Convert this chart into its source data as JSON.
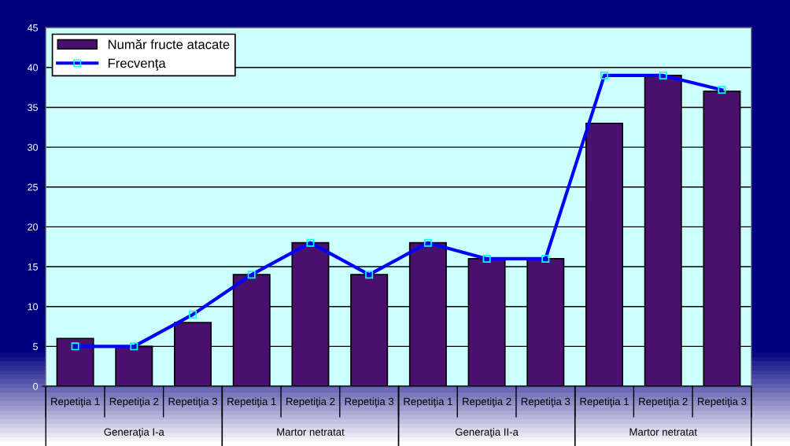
{
  "chart_data": {
    "type": "bar",
    "categories": [
      "Repetiţia 1",
      "Repetiţia 2",
      "Repetiţia 3",
      "Repetiţia 1",
      "Repetiţia 2",
      "Repetiţia 3",
      "Repetiţia 1",
      "Repetiţia 2",
      "Repetiţia 3",
      "Repetiţia 1",
      "Repetiţia 2",
      "Repetiţia 3"
    ],
    "series": [
      {
        "name": "Număr fructe atacate",
        "color": "#4a1070",
        "values": [
          6,
          5,
          8,
          14,
          18,
          14,
          18,
          16,
          16,
          33,
          39,
          37
        ]
      },
      {
        "name": "Frecvenţa",
        "type": "line",
        "color": "#0000ff",
        "marker": "square",
        "values": [
          5,
          5,
          9,
          14,
          18,
          14,
          18,
          16,
          16,
          39,
          39,
          37.2
        ]
      }
    ],
    "annotations": [
      "Generaţia I-a",
      "Martor netratat",
      "Generaţia II-a",
      "Martor netratat"
    ],
    "ylim": [
      0,
      45
    ],
    "yticks": [
      0,
      5,
      10,
      15,
      20,
      25,
      30,
      35,
      40,
      45
    ],
    "grid": "y",
    "legend": "top left"
  }
}
